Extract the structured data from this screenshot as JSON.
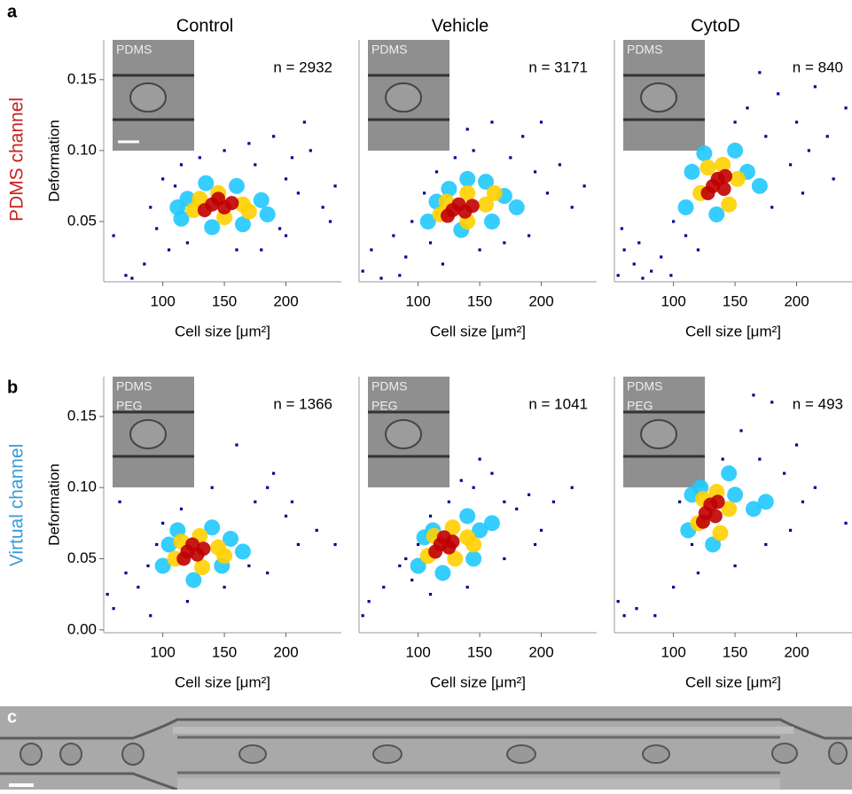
{
  "panel_labels": [
    "a",
    "b",
    "c"
  ],
  "row_labels": [
    {
      "text": "PDMS channel",
      "color": "#c8201e"
    },
    {
      "text": "Virtual channel",
      "color": "#3a9ad9"
    }
  ],
  "chart_data": [
    {
      "type": "scatter",
      "title": "Control",
      "xlabel": "Cell size [μm²]",
      "ylabel": "Deformation",
      "annotation": "n = 2932",
      "inset_labels": [
        "PDMS"
      ],
      "xlim": [
        52,
        245
      ],
      "xticks": [
        100,
        150,
        200
      ],
      "ylim": [
        0.0075,
        0.178
      ],
      "yticks": [
        0.05,
        {
          "value": 0.1,
          "label": "0.10"
        },
        0.15
      ],
      "series": [
        {
          "color": "#00008f",
          "size": 1.6,
          "x": [
            60,
            70,
            85,
            95,
            100,
            105,
            115,
            130,
            150,
            175,
            190,
            200,
            210,
            220,
            230,
            240,
            200,
            180,
            160,
            120,
            75,
            215,
            90,
            236,
            205,
            170,
            110,
            195
          ],
          "values": [
            0.04,
            0.012,
            0.02,
            0.045,
            0.08,
            0.03,
            0.09,
            0.095,
            0.1,
            0.09,
            0.11,
            0.08,
            0.07,
            0.1,
            0.06,
            0.075,
            0.04,
            0.03,
            0.03,
            0.035,
            0.01,
            0.12,
            0.06,
            0.05,
            0.095,
            0.105,
            0.075,
            0.045
          ]
        },
        {
          "color": "#20c8ff",
          "size": 9,
          "x": [
            115,
            180,
            160,
            120,
            140,
            185,
            112,
            165,
            135
          ],
          "values": [
            0.052,
            0.065,
            0.075,
            0.066,
            0.046,
            0.055,
            0.06,
            0.048,
            0.077
          ]
        },
        {
          "color": "#ffd000",
          "size": 9,
          "x": [
            125,
            165,
            145,
            150,
            130,
            170
          ],
          "values": [
            0.058,
            0.062,
            0.07,
            0.053,
            0.066,
            0.057
          ]
        },
        {
          "color": "#c00000",
          "size": 8,
          "x": [
            140,
            150,
            145,
            156,
            134
          ],
          "values": [
            0.062,
            0.06,
            0.066,
            0.063,
            0.058
          ]
        }
      ]
    },
    {
      "type": "scatter",
      "title": "Vehicle",
      "xlabel": "Cell size [μm²]",
      "annotation": "n = 3171",
      "inset_labels": [
        "PDMS"
      ],
      "xlim": [
        52,
        245
      ],
      "xticks": [
        100,
        150,
        200
      ],
      "ylim": [
        0.0075,
        0.178
      ],
      "series": [
        {
          "color": "#00008f",
          "size": 1.6,
          "x": [
            55,
            62,
            70,
            80,
            90,
            95,
            105,
            115,
            130,
            145,
            160,
            175,
            185,
            195,
            205,
            215,
            225,
            235,
            190,
            170,
            150,
            110,
            85,
            200,
            140,
            120
          ],
          "values": [
            0.015,
            0.03,
            0.01,
            0.04,
            0.025,
            0.05,
            0.07,
            0.085,
            0.095,
            0.1,
            0.12,
            0.095,
            0.11,
            0.085,
            0.07,
            0.09,
            0.06,
            0.075,
            0.04,
            0.035,
            0.03,
            0.035,
            0.012,
            0.12,
            0.115,
            0.02
          ]
        },
        {
          "color": "#20c8ff",
          "size": 9,
          "x": [
            108,
            170,
            155,
            115,
            135,
            180,
            125,
            160,
            140
          ],
          "values": [
            0.05,
            0.068,
            0.078,
            0.064,
            0.044,
            0.06,
            0.073,
            0.05,
            0.08
          ]
        },
        {
          "color": "#ffd000",
          "size": 9,
          "x": [
            118,
            155,
            140,
            140,
            123,
            162
          ],
          "values": [
            0.055,
            0.062,
            0.07,
            0.05,
            0.064,
            0.07
          ]
        },
        {
          "color": "#c00000",
          "size": 8,
          "x": [
            128,
            138,
            133,
            144,
            124
          ],
          "values": [
            0.058,
            0.057,
            0.062,
            0.061,
            0.054
          ]
        }
      ]
    },
    {
      "type": "scatter",
      "title": "CytoD",
      "xlabel": "Cell size [μm²]",
      "annotation": "n = 840",
      "inset_labels": [
        "PDMS"
      ],
      "xlim": [
        52,
        245
      ],
      "xticks": [
        100,
        150,
        200
      ],
      "ylim": [
        0.0075,
        0.178
      ],
      "series": [
        {
          "color": "#00008f",
          "size": 1.6,
          "x": [
            55,
            60,
            68,
            75,
            82,
            90,
            98,
            58,
            72,
            100,
            110,
            160,
            175,
            185,
            200,
            210,
            225,
            240,
            195,
            170,
            150,
            215,
            230,
            180,
            205,
            120
          ],
          "values": [
            0.012,
            0.03,
            0.02,
            0.01,
            0.015,
            0.025,
            0.012,
            0.045,
            0.035,
            0.05,
            0.04,
            0.13,
            0.11,
            0.14,
            0.12,
            0.1,
            0.11,
            0.13,
            0.09,
            0.155,
            0.12,
            0.145,
            0.08,
            0.06,
            0.07,
            0.03
          ]
        },
        {
          "color": "#20c8ff",
          "size": 9,
          "x": [
            110,
            160,
            150,
            115,
            135,
            170,
            125
          ],
          "values": [
            0.06,
            0.085,
            0.1,
            0.085,
            0.055,
            0.075,
            0.098
          ]
        },
        {
          "color": "#ffd000",
          "size": 9,
          "x": [
            122,
            152,
            140,
            145,
            128
          ],
          "values": [
            0.07,
            0.08,
            0.09,
            0.062,
            0.088
          ]
        },
        {
          "color": "#c00000",
          "size": 8,
          "x": [
            132,
            141,
            136,
            128,
            142
          ],
          "values": [
            0.075,
            0.073,
            0.08,
            0.07,
            0.082
          ]
        }
      ]
    },
    {
      "type": "scatter",
      "xlabel": "Cell size [μm²]",
      "ylabel": "Deformation",
      "annotation": "n = 1366",
      "inset_labels": [
        "PDMS",
        "PEG"
      ],
      "xlim": [
        52,
        245
      ],
      "xticks": [
        100,
        150,
        200
      ],
      "ylim": [
        -0.002,
        0.178
      ],
      "yticks": [
        {
          "value": 0,
          "label": "0.00"
        },
        0.05,
        {
          "value": 0.1,
          "label": "0.10"
        },
        0.15
      ],
      "series": [
        {
          "color": "#00008f",
          "size": 1.6,
          "x": [
            55,
            60,
            70,
            80,
            90,
            95,
            100,
            115,
            140,
            160,
            175,
            185,
            200,
            210,
            225,
            240,
            185,
            150,
            120,
            88,
            65,
            190,
            205,
            170
          ],
          "values": [
            0.025,
            0.015,
            0.04,
            0.03,
            0.01,
            0.06,
            0.075,
            0.085,
            0.1,
            0.13,
            0.09,
            0.1,
            0.08,
            0.06,
            0.07,
            0.06,
            0.04,
            0.03,
            0.02,
            0.045,
            0.09,
            0.11,
            0.09,
            0.045
          ]
        },
        {
          "color": "#20c8ff",
          "size": 9,
          "x": [
            100,
            155,
            140,
            105,
            125,
            165,
            112,
            148
          ],
          "values": [
            0.045,
            0.064,
            0.072,
            0.06,
            0.035,
            0.055,
            0.07,
            0.045
          ]
        },
        {
          "color": "#ffd000",
          "size": 9,
          "x": [
            110,
            145,
            130,
            132,
            115,
            150
          ],
          "values": [
            0.05,
            0.058,
            0.066,
            0.044,
            0.062,
            0.052
          ]
        },
        {
          "color": "#c00000",
          "size": 8,
          "x": [
            120,
            128,
            124,
            133,
            117
          ],
          "values": [
            0.055,
            0.053,
            0.06,
            0.057,
            0.05
          ]
        }
      ]
    },
    {
      "type": "scatter",
      "xlabel": "Cell size [μm²]",
      "annotation": "n = 1041",
      "inset_labels": [
        "PDMS",
        "PEG"
      ],
      "xlim": [
        52,
        245
      ],
      "xticks": [
        100,
        150,
        200
      ],
      "ylim": [
        -0.002,
        0.178
      ],
      "yticks": [],
      "series": [
        {
          "color": "#00008f",
          "size": 1.6,
          "x": [
            55,
            60,
            72,
            85,
            95,
            100,
            110,
            125,
            145,
            160,
            170,
            180,
            190,
            200,
            210,
            225,
            170,
            140,
            110,
            90,
            150,
            195,
            135
          ],
          "values": [
            0.01,
            0.02,
            0.03,
            0.045,
            0.035,
            0.06,
            0.08,
            0.09,
            0.1,
            0.11,
            0.09,
            0.085,
            0.095,
            0.07,
            0.09,
            0.1,
            0.05,
            0.03,
            0.025,
            0.05,
            0.12,
            0.06,
            0.105
          ]
        },
        {
          "color": "#20c8ff",
          "size": 9,
          "x": [
            100,
            150,
            140,
            105,
            120,
            160,
            112,
            145
          ],
          "values": [
            0.045,
            0.07,
            0.08,
            0.065,
            0.04,
            0.075,
            0.07,
            0.05
          ]
        },
        {
          "color": "#ffd000",
          "size": 9,
          "x": [
            108,
            140,
            128,
            130,
            113,
            145
          ],
          "values": [
            0.052,
            0.065,
            0.072,
            0.05,
            0.066,
            0.06
          ]
        },
        {
          "color": "#c00000",
          "size": 8,
          "x": [
            118,
            125,
            121,
            128,
            114
          ],
          "values": [
            0.06,
            0.058,
            0.065,
            0.062,
            0.055
          ]
        }
      ]
    },
    {
      "type": "scatter",
      "xlabel": "Cell size [μm²]",
      "annotation": "n = 493",
      "inset_labels": [
        "PDMS",
        "PEG"
      ],
      "xlim": [
        52,
        245
      ],
      "xticks": [
        100,
        150,
        200
      ],
      "ylim": [
        -0.002,
        0.178
      ],
      "yticks": [],
      "series": [
        {
          "color": "#00008f",
          "size": 1.6,
          "x": [
            55,
            60,
            70,
            85,
            100,
            115,
            140,
            155,
            170,
            180,
            190,
            205,
            215,
            240,
            195,
            175,
            150,
            120,
            105,
            165,
            200
          ],
          "values": [
            0.02,
            0.01,
            0.015,
            0.01,
            0.03,
            0.06,
            0.12,
            0.14,
            0.12,
            0.16,
            0.11,
            0.09,
            0.1,
            0.075,
            0.07,
            0.06,
            0.045,
            0.04,
            0.09,
            0.165,
            0.13
          ]
        },
        {
          "color": "#20c8ff",
          "size": 9,
          "x": [
            112,
            150,
            145,
            115,
            132,
            165,
            122,
            175
          ],
          "values": [
            0.07,
            0.095,
            0.11,
            0.095,
            0.06,
            0.085,
            0.1,
            0.09
          ]
        },
        {
          "color": "#ffd000",
          "size": 9,
          "x": [
            120,
            145,
            135,
            138,
            124
          ],
          "values": [
            0.075,
            0.085,
            0.097,
            0.068,
            0.092
          ]
        },
        {
          "color": "#c00000",
          "size": 8,
          "x": [
            126,
            134,
            130,
            124,
            136
          ],
          "values": [
            0.082,
            0.08,
            0.088,
            0.076,
            0.09
          ]
        }
      ]
    }
  ]
}
